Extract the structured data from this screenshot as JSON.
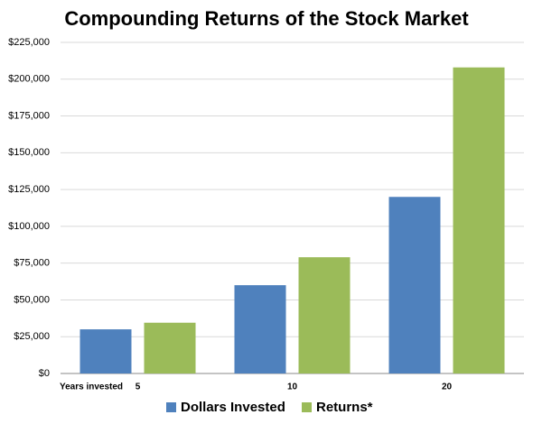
{
  "chart_data": {
    "type": "bar",
    "title": "Compounding Returns of the Stock Market",
    "x_label": "Years invested",
    "categories": [
      "5",
      "10",
      "20"
    ],
    "series": [
      {
        "name": "Dollars Invested",
        "color": "#4f81bd",
        "values": [
          30000,
          60000,
          120000
        ]
      },
      {
        "name": "Returns*",
        "color": "#9bbb59",
        "values": [
          34500,
          79000,
          208000
        ]
      }
    ],
    "ylim": [
      0,
      225000
    ],
    "yticks": [
      {
        "value": 0,
        "label": "$0"
      },
      {
        "value": 25000,
        "label": "$25,000"
      },
      {
        "value": 50000,
        "label": "$50,000"
      },
      {
        "value": 75000,
        "label": "$75,000"
      },
      {
        "value": 100000,
        "label": "$100,000"
      },
      {
        "value": 125000,
        "label": "$125,000"
      },
      {
        "value": 150000,
        "label": "$150,000"
      },
      {
        "value": 175000,
        "label": "$175,000"
      },
      {
        "value": 200000,
        "label": "$200,000"
      },
      {
        "value": 225000,
        "label": "$225,000"
      }
    ],
    "grid": true,
    "legend": "bottom"
  }
}
